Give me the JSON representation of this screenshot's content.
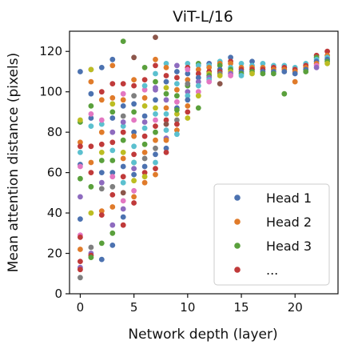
{
  "chart_data": {
    "type": "scatter",
    "title": "ViT-L/16",
    "xlabel": "Network depth (layer)",
    "ylabel": "Mean attention distance (pixels)",
    "xlim": [
      -1,
      24
    ],
    "ylim": [
      0,
      130
    ],
    "xticks": [
      0,
      5,
      10,
      15,
      20
    ],
    "yticks": [
      0,
      20,
      40,
      60,
      80,
      100,
      120
    ],
    "grid": false,
    "legend": {
      "position": "bottom-right",
      "entries": [
        {
          "label": "Head 1",
          "color": "#4c72b0"
        },
        {
          "label": "Head 2",
          "color": "#e07b2a"
        },
        {
          "label": "Head 3",
          "color": "#5aa03c"
        },
        {
          "label": "...",
          "color": "#c03a3a"
        }
      ]
    },
    "palette": [
      "#4c72b0",
      "#e07b2a",
      "#5aa03c",
      "#c03a3a",
      "#8e6bbf",
      "#8c564b",
      "#e377c2",
      "#7f7f7f",
      "#bcbd22",
      "#5bc0cf"
    ],
    "points": [
      [
        0,
        110,
        0
      ],
      [
        0,
        85,
        2
      ],
      [
        0,
        75,
        1
      ],
      [
        0,
        73,
        3
      ],
      [
        0,
        64,
        0
      ],
      [
        0,
        63,
        6
      ],
      [
        0,
        57,
        2
      ],
      [
        0,
        48,
        4
      ],
      [
        0,
        37,
        0
      ],
      [
        0,
        29,
        6
      ],
      [
        0,
        28,
        3
      ],
      [
        0,
        22,
        1
      ],
      [
        0,
        16,
        3
      ],
      [
        0,
        13,
        4
      ],
      [
        0,
        12,
        3
      ],
      [
        0,
        8,
        7
      ],
      [
        0,
        86,
        8
      ],
      [
        0,
        70,
        9
      ],
      [
        1,
        111,
        4
      ],
      [
        1,
        105,
        1
      ],
      [
        1,
        99,
        0
      ],
      [
        1,
        93,
        2
      ],
      [
        1,
        87,
        0
      ],
      [
        1,
        83,
        9
      ],
      [
        1,
        73,
        3
      ],
      [
        1,
        65,
        1
      ],
      [
        1,
        60,
        3
      ],
      [
        1,
        53,
        2
      ],
      [
        1,
        40,
        8
      ],
      [
        1,
        23,
        7
      ],
      [
        1,
        20,
        4
      ],
      [
        1,
        19,
        3
      ],
      [
        1,
        18,
        2
      ],
      [
        1,
        89,
        6
      ],
      [
        1,
        111,
        8
      ],
      [
        2,
        112,
        0
      ],
      [
        2,
        100,
        3
      ],
      [
        2,
        96,
        1
      ],
      [
        2,
        84,
        9
      ],
      [
        2,
        80,
        1
      ],
      [
        2,
        74,
        3
      ],
      [
        2,
        66,
        2
      ],
      [
        2,
        60,
        0
      ],
      [
        2,
        55,
        4
      ],
      [
        2,
        52,
        7
      ],
      [
        2,
        41,
        1
      ],
      [
        2,
        39,
        3
      ],
      [
        2,
        25,
        2
      ],
      [
        2,
        17,
        0
      ],
      [
        2,
        86,
        6
      ],
      [
        2,
        70,
        8
      ],
      [
        3,
        116,
        0
      ],
      [
        3,
        113,
        1
      ],
      [
        3,
        104,
        3
      ],
      [
        3,
        97,
        1
      ],
      [
        3,
        94,
        8
      ],
      [
        3,
        90,
        2
      ],
      [
        3,
        87,
        0
      ],
      [
        3,
        80,
        4
      ],
      [
        3,
        75,
        3
      ],
      [
        3,
        66,
        2
      ],
      [
        3,
        60,
        0
      ],
      [
        3,
        58,
        6
      ],
      [
        3,
        53,
        7
      ],
      [
        3,
        49,
        3
      ],
      [
        3,
        43,
        1
      ],
      [
        3,
        34,
        4
      ],
      [
        3,
        30,
        2
      ],
      [
        3,
        24,
        0
      ],
      [
        3,
        71,
        9
      ],
      [
        4,
        125,
        2
      ],
      [
        4,
        104,
        3
      ],
      [
        4,
        99,
        6
      ],
      [
        4,
        96,
        1
      ],
      [
        4,
        93,
        0
      ],
      [
        4,
        88,
        7
      ],
      [
        4,
        83,
        9
      ],
      [
        4,
        80,
        3
      ],
      [
        4,
        76,
        2
      ],
      [
        4,
        70,
        8
      ],
      [
        4,
        67,
        1
      ],
      [
        4,
        63,
        0
      ],
      [
        4,
        58,
        3
      ],
      [
        4,
        55,
        9
      ],
      [
        4,
        50,
        5
      ],
      [
        4,
        46,
        6
      ],
      [
        4,
        42,
        4
      ],
      [
        4,
        38,
        0
      ],
      [
        4,
        34,
        3
      ],
      [
        4,
        85,
        4
      ],
      [
        5,
        117,
        5
      ],
      [
        5,
        106,
        1
      ],
      [
        5,
        103,
        3
      ],
      [
        5,
        98,
        7
      ],
      [
        5,
        94,
        0
      ],
      [
        5,
        90,
        2
      ],
      [
        5,
        86,
        6
      ],
      [
        5,
        80,
        0
      ],
      [
        5,
        78,
        1
      ],
      [
        5,
        73,
        9
      ],
      [
        5,
        69,
        3
      ],
      [
        5,
        65,
        2
      ],
      [
        5,
        62,
        4
      ],
      [
        5,
        59,
        0
      ],
      [
        5,
        56,
        8
      ],
      [
        5,
        51,
        6
      ],
      [
        5,
        48,
        1
      ],
      [
        5,
        45,
        3
      ],
      [
        5,
        65,
        9
      ],
      [
        6,
        112,
        2
      ],
      [
        6,
        106,
        3
      ],
      [
        6,
        101,
        6
      ],
      [
        6,
        97,
        1
      ],
      [
        6,
        93,
        8
      ],
      [
        6,
        88,
        0
      ],
      [
        6,
        85,
        4
      ],
      [
        6,
        82,
        9
      ],
      [
        6,
        78,
        3
      ],
      [
        6,
        74,
        2
      ],
      [
        6,
        70,
        1
      ],
      [
        6,
        67,
        7
      ],
      [
        6,
        63,
        0
      ],
      [
        6,
        60,
        3
      ],
      [
        6,
        58,
        8
      ],
      [
        6,
        55,
        1
      ],
      [
        6,
        103,
        9
      ],
      [
        7,
        127,
        5
      ],
      [
        7,
        116,
        1
      ],
      [
        7,
        113,
        3
      ],
      [
        7,
        109,
        9
      ],
      [
        7,
        105,
        2
      ],
      [
        7,
        101,
        4
      ],
      [
        7,
        96,
        0
      ],
      [
        7,
        92,
        8
      ],
      [
        7,
        89,
        9
      ],
      [
        7,
        86,
        6
      ],
      [
        7,
        83,
        3
      ],
      [
        7,
        80,
        2
      ],
      [
        7,
        76,
        1
      ],
      [
        7,
        72,
        7
      ],
      [
        7,
        69,
        0
      ],
      [
        7,
        65,
        9
      ],
      [
        7,
        62,
        3
      ],
      [
        7,
        59,
        1
      ],
      [
        7,
        102,
        4
      ],
      [
        8,
        114,
        9
      ],
      [
        8,
        112,
        1
      ],
      [
        8,
        108,
        3
      ],
      [
        8,
        105,
        0
      ],
      [
        8,
        102,
        8
      ],
      [
        8,
        99,
        2
      ],
      [
        8,
        96,
        4
      ],
      [
        8,
        92,
        1
      ],
      [
        8,
        89,
        9
      ],
      [
        8,
        86,
        3
      ],
      [
        8,
        84,
        5
      ],
      [
        8,
        81,
        9
      ],
      [
        8,
        77,
        4
      ],
      [
        8,
        76,
        1
      ],
      [
        8,
        72,
        0
      ],
      [
        8,
        70,
        3
      ],
      [
        9,
        113,
        4
      ],
      [
        9,
        110,
        0
      ],
      [
        9,
        107,
        3
      ],
      [
        9,
        104,
        9
      ],
      [
        9,
        101,
        1
      ],
      [
        9,
        98,
        2
      ],
      [
        9,
        95,
        6
      ],
      [
        9,
        92,
        0
      ],
      [
        9,
        89,
        8
      ],
      [
        9,
        86,
        7
      ],
      [
        9,
        84,
        3
      ],
      [
        9,
        81,
        1
      ],
      [
        9,
        79,
        9
      ],
      [
        9,
        91,
        2
      ],
      [
        10,
        114,
        9
      ],
      [
        10,
        112,
        3
      ],
      [
        10,
        109,
        0
      ],
      [
        10,
        106,
        1
      ],
      [
        10,
        103,
        2
      ],
      [
        10,
        100,
        4
      ],
      [
        10,
        98,
        9
      ],
      [
        10,
        96,
        0
      ],
      [
        10,
        93,
        1
      ],
      [
        10,
        90,
        3
      ],
      [
        10,
        87,
        8
      ],
      [
        10,
        111,
        6
      ],
      [
        10,
        104,
        7
      ],
      [
        11,
        114,
        2
      ],
      [
        11,
        113,
        9
      ],
      [
        11,
        111,
        1
      ],
      [
        11,
        109,
        3
      ],
      [
        11,
        107,
        0
      ],
      [
        11,
        105,
        4
      ],
      [
        11,
        103,
        9
      ],
      [
        11,
        100,
        6
      ],
      [
        11,
        98,
        8
      ],
      [
        11,
        92,
        2
      ],
      [
        12,
        114,
        0
      ],
      [
        12,
        113,
        9
      ],
      [
        12,
        112,
        1
      ],
      [
        12,
        110,
        3
      ],
      [
        12,
        109,
        8
      ],
      [
        12,
        108,
        2
      ],
      [
        12,
        107,
        4
      ],
      [
        12,
        106,
        9
      ],
      [
        12,
        105,
        6
      ],
      [
        13,
        115,
        9
      ],
      [
        13,
        114,
        1
      ],
      [
        13,
        113,
        2
      ],
      [
        13,
        111,
        0
      ],
      [
        13,
        110,
        3
      ],
      [
        13,
        109,
        7
      ],
      [
        13,
        104,
        5
      ],
      [
        13,
        108,
        8
      ],
      [
        14,
        117,
        0
      ],
      [
        14,
        115,
        3
      ],
      [
        14,
        114,
        1
      ],
      [
        14,
        112,
        9
      ],
      [
        14,
        111,
        2
      ],
      [
        14,
        110,
        8
      ],
      [
        14,
        109,
        4
      ],
      [
        14,
        108,
        6
      ],
      [
        15,
        114,
        9
      ],
      [
        15,
        112,
        1
      ],
      [
        15,
        111,
        3
      ],
      [
        15,
        110,
        0
      ],
      [
        15,
        109,
        2
      ],
      [
        15,
        108,
        9
      ],
      [
        16,
        115,
        0
      ],
      [
        16,
        113,
        9
      ],
      [
        16,
        112,
        1
      ],
      [
        16,
        111,
        3
      ],
      [
        16,
        110,
        2
      ],
      [
        16,
        109,
        8
      ],
      [
        17,
        114,
        9
      ],
      [
        17,
        112,
        1
      ],
      [
        17,
        111,
        3
      ],
      [
        17,
        110,
        0
      ],
      [
        17,
        109,
        2
      ],
      [
        18,
        113,
        9
      ],
      [
        18,
        112,
        3
      ],
      [
        18,
        111,
        1
      ],
      [
        18,
        110,
        0
      ],
      [
        18,
        109,
        2
      ],
      [
        19,
        113,
        9
      ],
      [
        19,
        112,
        3
      ],
      [
        19,
        111,
        1
      ],
      [
        19,
        110,
        0
      ],
      [
        19,
        99,
        2
      ],
      [
        20,
        112,
        9
      ],
      [
        20,
        111,
        3
      ],
      [
        20,
        110,
        1
      ],
      [
        20,
        109,
        0
      ],
      [
        20,
        105,
        1
      ],
      [
        21,
        114,
        9
      ],
      [
        21,
        113,
        3
      ],
      [
        21,
        112,
        1
      ],
      [
        21,
        111,
        0
      ],
      [
        21,
        110,
        2
      ],
      [
        22,
        118,
        3
      ],
      [
        22,
        117,
        2
      ],
      [
        22,
        116,
        9
      ],
      [
        22,
        115,
        0
      ],
      [
        22,
        114,
        1
      ],
      [
        22,
        113,
        6
      ],
      [
        22,
        112,
        4
      ],
      [
        23,
        120,
        3
      ],
      [
        23,
        118,
        1
      ],
      [
        23,
        117,
        9
      ],
      [
        23,
        116,
        0
      ],
      [
        23,
        115,
        2
      ],
      [
        23,
        114,
        8
      ]
    ]
  }
}
